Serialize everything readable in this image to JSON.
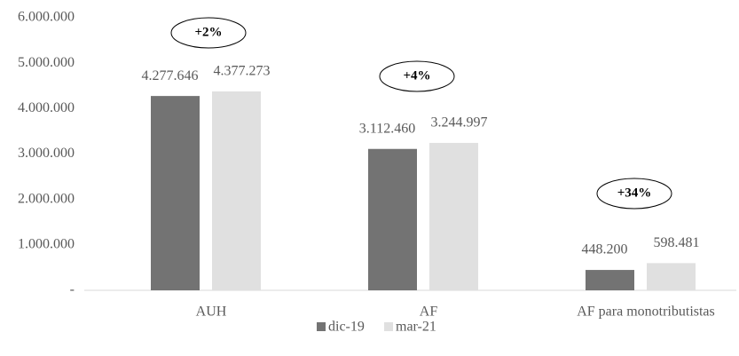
{
  "chart_data": {
    "type": "bar",
    "categories": [
      "AUH",
      "AF",
      "AF para monotributistas"
    ],
    "series": [
      {
        "name": "dic-19",
        "color": "#737373",
        "values": [
          4277646,
          3112460,
          448200
        ],
        "value_labels": [
          "4.277.646",
          "3.112.460",
          "448.200"
        ]
      },
      {
        "name": "mar-21",
        "color": "#e0e0e0",
        "values": [
          4377273,
          3244997,
          598481
        ],
        "value_labels": [
          "4.377.273",
          "3.244.997",
          "598.481"
        ]
      }
    ],
    "ylim": [
      0,
      6000000
    ],
    "yticks": [
      {
        "value": 0,
        "label": "-"
      },
      {
        "value": 1000000,
        "label": "1.000.000"
      },
      {
        "value": 2000000,
        "label": "2.000.000"
      },
      {
        "value": 3000000,
        "label": "3.000.000"
      },
      {
        "value": 4000000,
        "label": "4.000.000"
      },
      {
        "value": 5000000,
        "label": "5.000.000"
      },
      {
        "value": 6000000,
        "label": "6.000.000"
      }
    ],
    "grid": false,
    "legend": "bottom",
    "annotations": [
      "+2%",
      "+4%",
      "+34%"
    ]
  }
}
